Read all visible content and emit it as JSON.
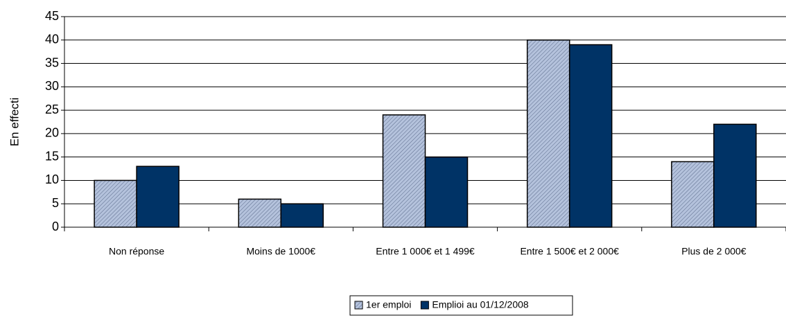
{
  "chart_data": {
    "type": "bar",
    "y_label": "En effecti",
    "categories": [
      "Non réponse",
      "Moins de 1000€",
      "Entre 1 000€ et 1 499€",
      "Entre 1 500€ et 2 000€",
      "Plus de 2 000€"
    ],
    "series": [
      {
        "name": "1er emploi",
        "color": "#b4c2dc",
        "values": [
          10,
          6,
          24,
          40,
          14
        ]
      },
      {
        "name": "Emplioi au 01/12/2008",
        "color": "#003366",
        "values": [
          13,
          5,
          15,
          39,
          22
        ]
      }
    ],
    "ylim": [
      0,
      45
    ],
    "yticks": [
      0,
      5,
      10,
      15,
      20,
      25,
      30,
      35,
      40,
      45
    ],
    "grid": true,
    "legend": "bottom"
  }
}
